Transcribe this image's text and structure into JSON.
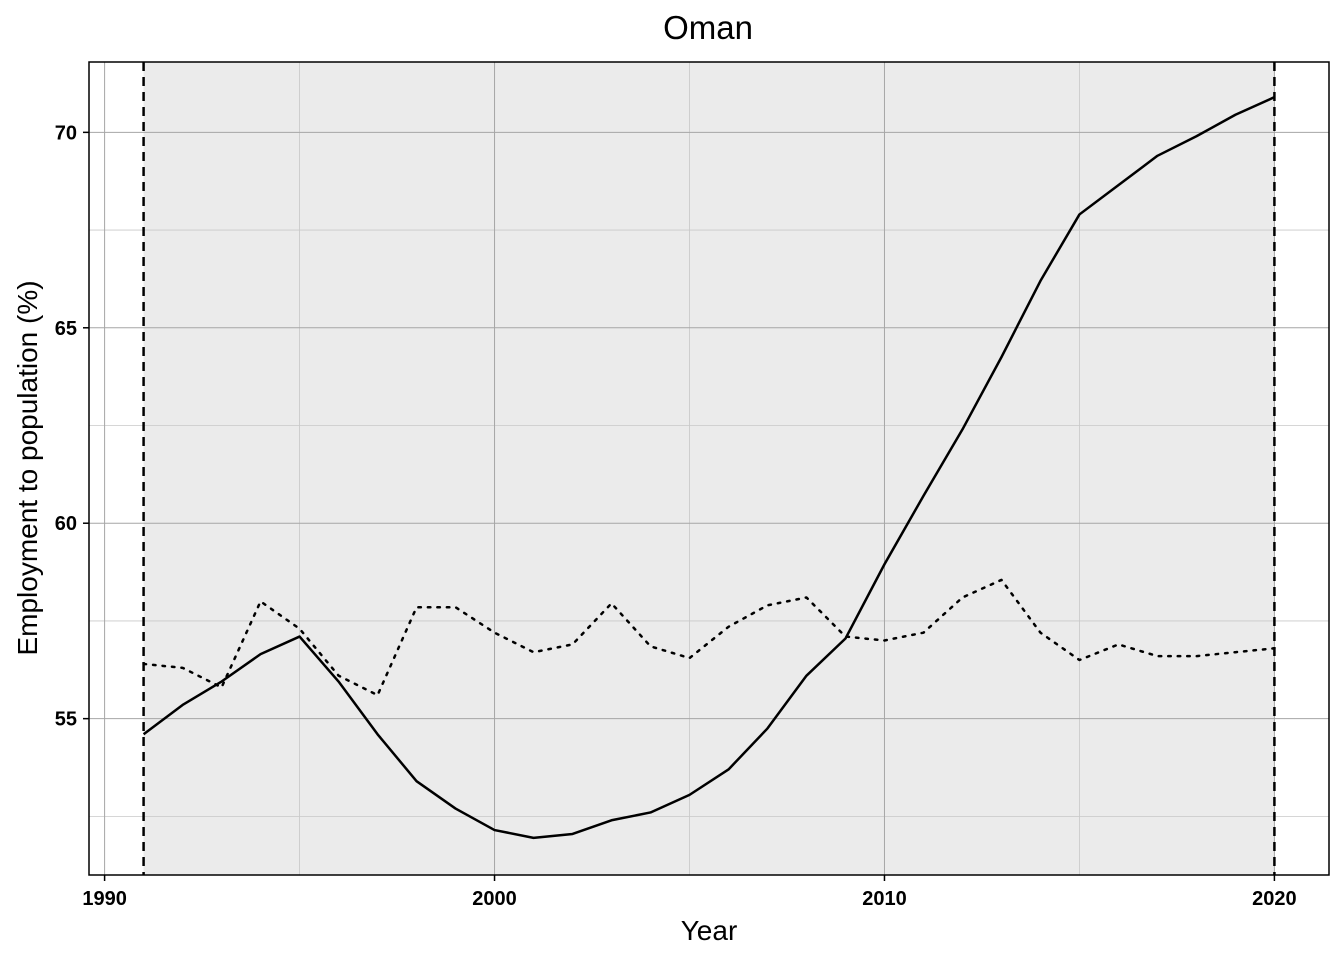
{
  "chart_data": {
    "type": "line",
    "title": "Oman",
    "xlabel": "Year",
    "ylabel": "Employment to population (%)",
    "xlim": [
      1989.6,
      2021.4
    ],
    "ylim": [
      51.0,
      71.8
    ],
    "x_ticks": [
      1990,
      2000,
      2010,
      2020
    ],
    "y_ticks": [
      55,
      60,
      65,
      70
    ],
    "grid": true,
    "shaded_region": [
      1991,
      2020
    ],
    "vertical_lines": [
      1991,
      2020
    ],
    "x": [
      1991,
      1992,
      1993,
      1994,
      1995,
      1996,
      1997,
      1998,
      1999,
      2000,
      2001,
      2002,
      2003,
      2004,
      2005,
      2006,
      2007,
      2008,
      2009,
      2010,
      2011,
      2012,
      2013,
      2014,
      2015,
      2016,
      2017,
      2018,
      2019,
      2020
    ],
    "series": [
      {
        "style": "solid",
        "values": [
          54.6,
          55.35,
          55.95,
          56.65,
          57.1,
          55.95,
          54.6,
          53.4,
          52.7,
          52.15,
          51.95,
          52.05,
          52.4,
          52.6,
          53.05,
          53.7,
          54.75,
          56.1,
          57.05,
          58.95,
          60.7,
          62.4,
          64.25,
          66.2,
          67.9,
          68.65,
          69.4,
          69.9,
          70.45,
          70.9
        ]
      },
      {
        "style": "dotted",
        "values": [
          56.4,
          56.3,
          55.8,
          58.0,
          57.3,
          56.1,
          55.6,
          57.85,
          57.85,
          57.2,
          56.7,
          56.9,
          57.95,
          56.85,
          56.55,
          57.35,
          57.9,
          58.1,
          57.1,
          57.0,
          57.2,
          58.1,
          58.55,
          57.2,
          56.5,
          56.9,
          56.6,
          56.6,
          56.7,
          56.8
        ]
      }
    ]
  }
}
